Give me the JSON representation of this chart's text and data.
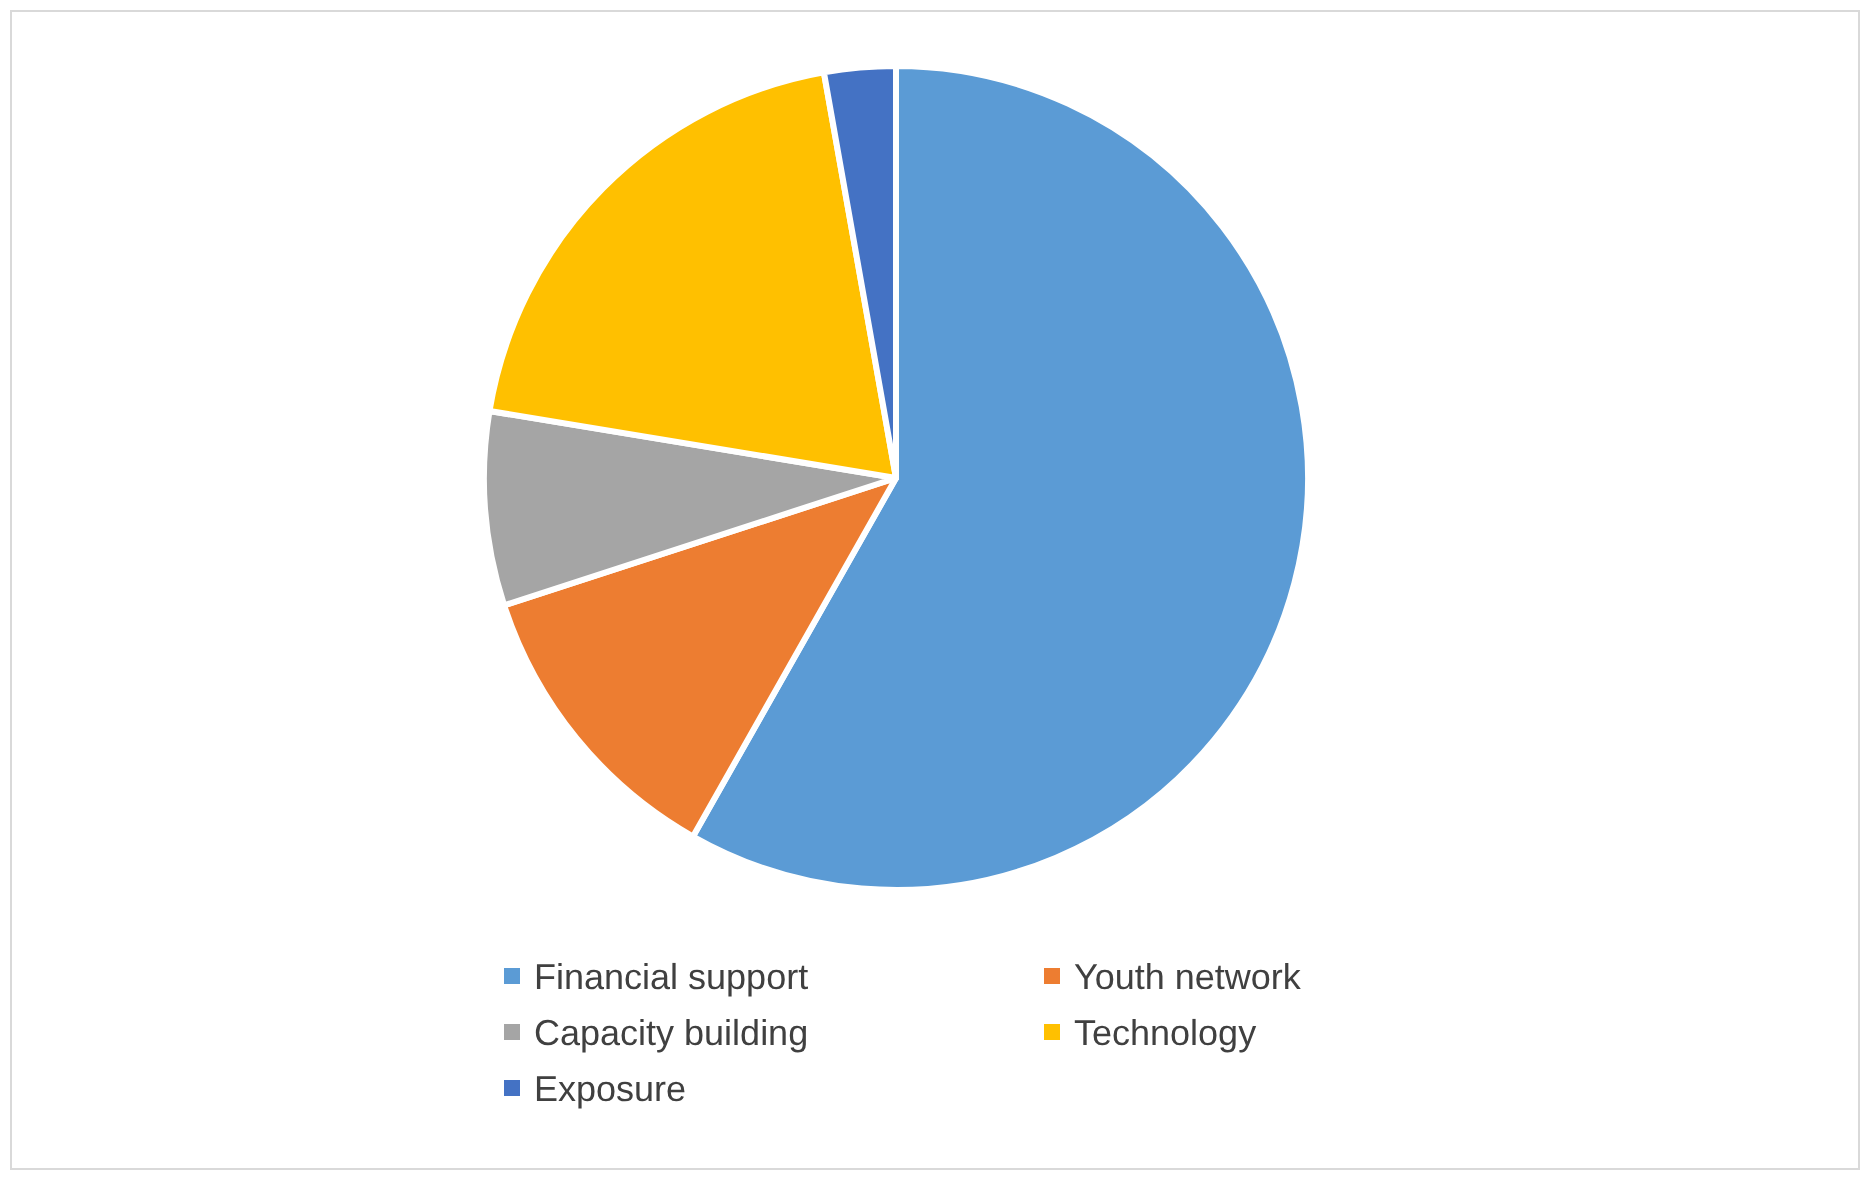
{
  "chart_data": {
    "type": "pie",
    "categories": [
      "Financial support",
      "Youth network",
      "Capacity building",
      "Technology",
      "Exposure"
    ],
    "values": [
      58.2,
      11.8,
      7.6,
      19.6,
      2.8
    ],
    "colors": [
      "#5b9bd5",
      "#ed7d31",
      "#a5a5a5",
      "#ffc000",
      "#4472c4"
    ],
    "legend": "bottom"
  }
}
